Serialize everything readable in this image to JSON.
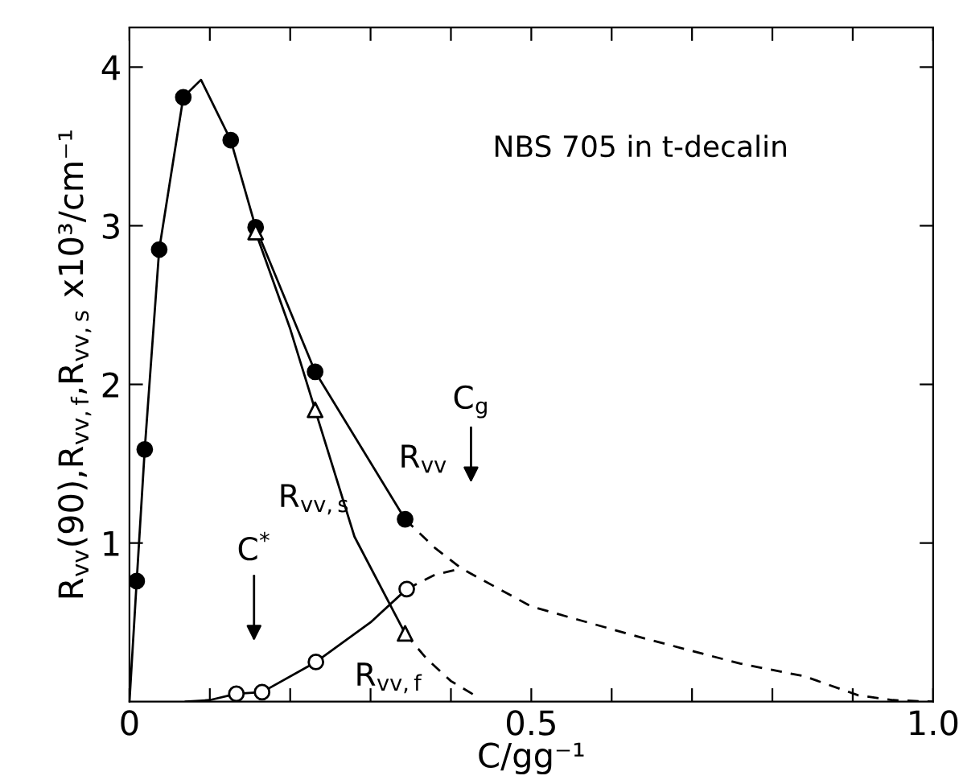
{
  "chart_data": {
    "type": "scatter",
    "xlabel": "C/gg⁻¹",
    "ylabel": "R$_{vv}$(90),R$_{vv,f}$,R$_{vv,s}$ x10³/cm⁻¹",
    "xlim": [
      0,
      1.0
    ],
    "ylim": [
      0,
      4.25
    ],
    "xticks": [
      {
        "value": 0,
        "label": "0"
      },
      {
        "value": 0.1,
        "label": null
      },
      {
        "value": 0.2,
        "label": null
      },
      {
        "value": 0.3,
        "label": null
      },
      {
        "value": 0.4,
        "label": null
      },
      {
        "value": 0.5,
        "label": "0.5"
      },
      {
        "value": 0.6,
        "label": null
      },
      {
        "value": 0.7,
        "label": null
      },
      {
        "value": 0.8,
        "label": null
      },
      {
        "value": 0.9,
        "label": null
      },
      {
        "value": 1.0,
        "label": "1.0"
      }
    ],
    "yticks": [
      1,
      2,
      3,
      4
    ],
    "grid": false,
    "legend": false,
    "series": [
      {
        "type": "line",
        "color": "#000000",
        "line_style": "solid",
        "marker": "none",
        "x": [
          0,
          0.009,
          0.019,
          0.037,
          0.067,
          0.089,
          0.126,
          0.157,
          0.231,
          0.343
        ],
        "values": [
          0,
          0.76,
          1.59,
          2.85,
          3.81,
          3.92,
          3.54,
          2.99,
          2.08,
          1.15
        ]
      },
      {
        "type": "line",
        "color": "#000000",
        "line_style": "dashed",
        "marker": "none",
        "x": [
          0.343,
          0.38,
          0.413,
          0.5,
          0.64,
          0.76,
          0.84,
          0.907,
          0.95,
          1.0
        ],
        "values": [
          1.15,
          0.97,
          0.84,
          0.6,
          0.4,
          0.24,
          0.16,
          0.04,
          0.01,
          0
        ]
      },
      {
        "type": "line",
        "color": "#000000",
        "line_style": "solid",
        "marker": "none",
        "x": [
          0.07,
          0.1,
          0.133,
          0.165,
          0.232,
          0.3,
          0.345
        ],
        "values": [
          0,
          0.01,
          0.05,
          0.06,
          0.25,
          0.5,
          0.71
        ]
      },
      {
        "type": "line",
        "color": "#000000",
        "line_style": "dashed",
        "marker": "none",
        "x": [
          0.345,
          0.38,
          0.413
        ],
        "values": [
          0.71,
          0.8,
          0.84
        ]
      },
      {
        "type": "line",
        "color": "#000000",
        "line_style": "solid",
        "marker": "none",
        "x": [
          0.157,
          0.2,
          0.231,
          0.28,
          0.343
        ],
        "values": [
          2.96,
          2.35,
          1.84,
          1.04,
          0.43
        ]
      },
      {
        "type": "line",
        "color": "#000000",
        "line_style": "dashed",
        "marker": "none",
        "x": [
          0.343,
          0.37,
          0.4,
          0.433
        ],
        "values": [
          0.43,
          0.27,
          0.13,
          0.03
        ]
      },
      {
        "color": "#000000",
        "marker": "circle",
        "x": [
          0.009,
          0.019,
          0.037,
          0.067,
          0.126,
          0.157,
          0.231,
          0.343
        ],
        "values": [
          0.76,
          1.59,
          2.85,
          3.81,
          3.54,
          2.99,
          2.08,
          1.15
        ]
      },
      {
        "color": "#ffffff",
        "marker": "triangle",
        "x": [
          0.157,
          0.231,
          0.343
        ],
        "values": [
          2.96,
          1.84,
          0.43
        ]
      },
      {
        "color": "#ffffff",
        "marker": "circle",
        "x": [
          0.133,
          0.165,
          0.232,
          0.345
        ],
        "values": [
          0.05,
          0.06,
          0.25,
          0.71
        ]
      }
    ],
    "annotations": [
      "NBS 705 in t-decalin",
      "R$_{vv}$",
      "R$_{vv,s}$",
      "R$_{vv,f}$",
      "C$^{*}$",
      "C$_{g}$"
    ]
  }
}
